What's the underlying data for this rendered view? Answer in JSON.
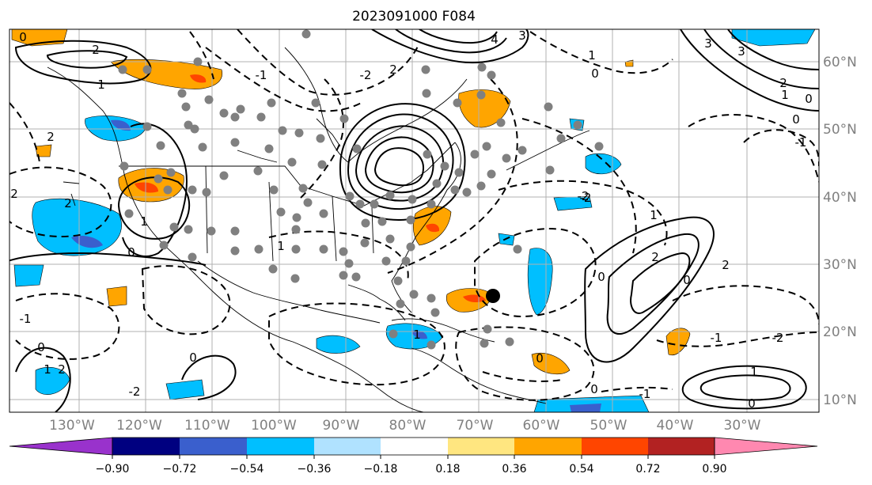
{
  "title": "2023091000 F084",
  "lon_ticks": [
    "130°W",
    "120°W",
    "110°W",
    "100°W",
    "90°W",
    "80°W",
    "70°W",
    "60°W",
    "50°W",
    "40°W",
    "30°W"
  ],
  "lat_ticks": [
    "60°N",
    "50°N",
    "40°N",
    "30°N",
    "20°N",
    "10°N"
  ],
  "colorbar": {
    "labels": [
      "−0.90",
      "−0.72",
      "−0.54",
      "−0.36",
      "−0.18",
      "0.18",
      "0.36",
      "0.54",
      "0.72",
      "0.90"
    ],
    "colors": [
      "#9932cc",
      "#000080",
      "#3a5fcd",
      "#00bfff",
      "#b0e2ff",
      "#ffffff",
      "#ffe680",
      "#ffa500",
      "#ff4500",
      "#b22222",
      "#ff88b0"
    ]
  },
  "contour_labels": [
    "0",
    "2",
    "2",
    "1",
    "1",
    "2",
    "0",
    "-2",
    "2",
    "4",
    "3",
    "3",
    "1",
    "0",
    "0",
    "3",
    "2",
    "1",
    "0",
    "-1",
    "-2",
    "0",
    "1",
    "2",
    "-1",
    "-2",
    "1",
    "0",
    "0",
    "2",
    "2",
    "0",
    "0",
    "-2",
    "1",
    "1",
    "-1",
    "-2",
    "-1",
    "2",
    "0",
    "0",
    "1",
    "-1",
    "-1"
  ],
  "marker_color": "#808080",
  "storm_marker_color": "#000000"
}
